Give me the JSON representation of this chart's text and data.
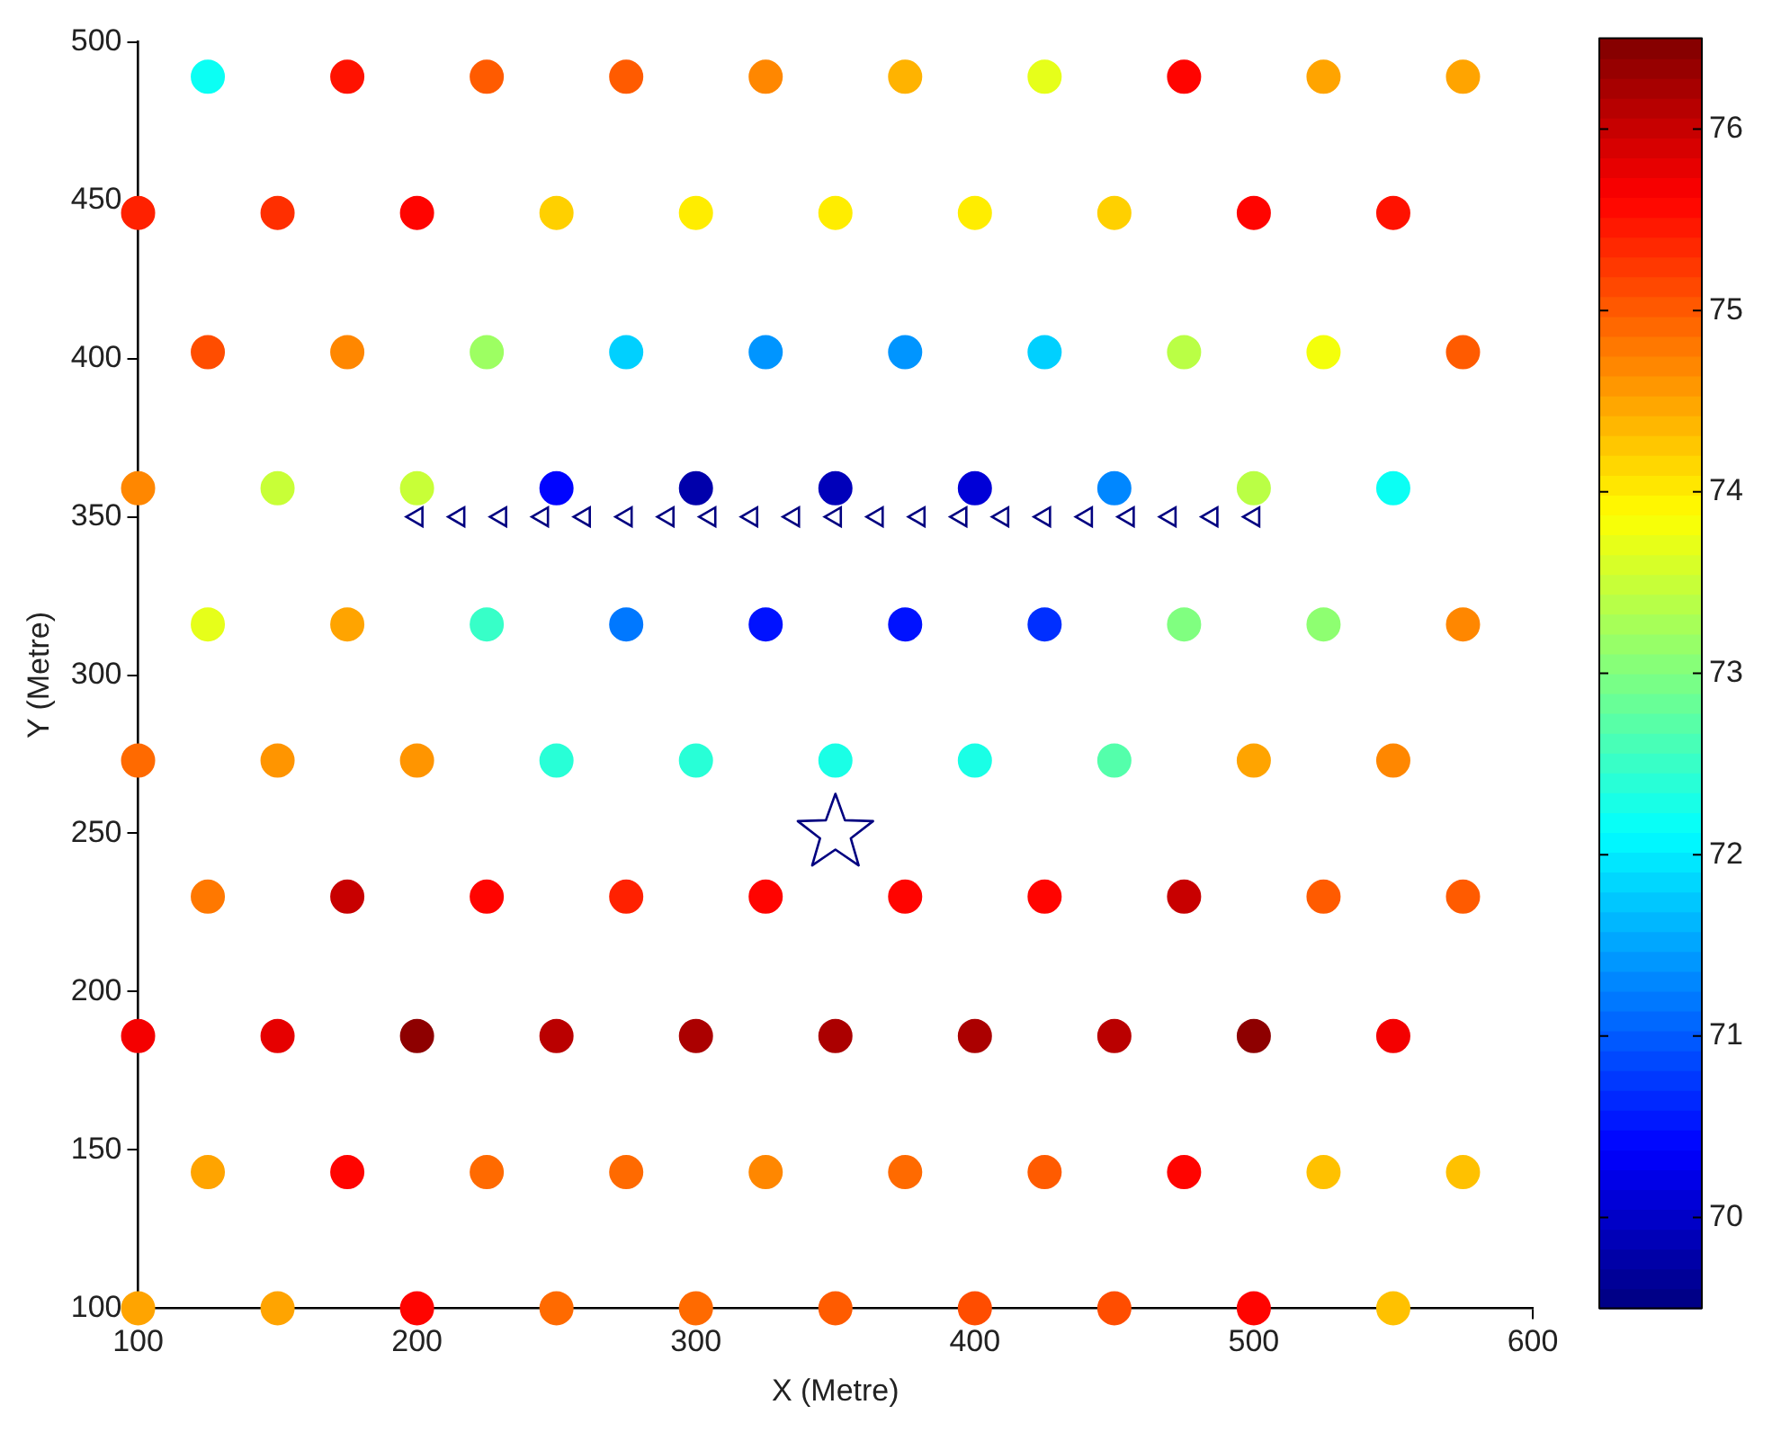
{
  "chart_data": {
    "type": "scatter",
    "xlabel": "X (Metre)",
    "ylabel": "Y (Metre)",
    "xlim": [
      100,
      600
    ],
    "ylim": [
      100,
      500
    ],
    "xticks": [
      100,
      200,
      300,
      400,
      500,
      600
    ],
    "yticks": [
      100,
      150,
      200,
      250,
      300,
      350,
      400,
      450,
      500
    ],
    "grid": false,
    "legend": false,
    "clim": [
      69.5,
      76.5
    ],
    "cticks": [
      70,
      71,
      72,
      73,
      74,
      75,
      76
    ],
    "series": [
      {
        "type": "scatter",
        "marker": "circle",
        "x": [
          100,
          150,
          200,
          250,
          300,
          350,
          400,
          450,
          500,
          550,
          125,
          175,
          225,
          275,
          325,
          375,
          425,
          475,
          525,
          575,
          100,
          150,
          200,
          250,
          300,
          350,
          400,
          450,
          500,
          550,
          125,
          175,
          225,
          275,
          325,
          375,
          425,
          475,
          525,
          575,
          100,
          150,
          200,
          250,
          300,
          350,
          400,
          450,
          500,
          550,
          125,
          175,
          225,
          275,
          325,
          375,
          425,
          475,
          525,
          575,
          100,
          150,
          200,
          250,
          300,
          350,
          400,
          450,
          500,
          550,
          125,
          175,
          225,
          275,
          325,
          375,
          425,
          475,
          525,
          575,
          100,
          150,
          200,
          250,
          300,
          350,
          400,
          450,
          500,
          550,
          125,
          175,
          225,
          275,
          325,
          375,
          425,
          475,
          525,
          575
        ],
        "values": [
          100,
          100,
          100,
          100,
          100,
          100,
          100,
          100,
          100,
          100,
          143,
          143,
          143,
          143,
          143,
          143,
          143,
          143,
          143,
          143,
          186,
          186,
          186,
          186,
          186,
          186,
          186,
          186,
          186,
          186,
          230,
          230,
          230,
          230,
          230,
          230,
          230,
          230,
          230,
          230,
          273,
          273,
          273,
          273,
          273,
          273,
          273,
          273,
          273,
          273,
          316,
          316,
          316,
          316,
          316,
          316,
          316,
          316,
          316,
          316,
          359,
          359,
          359,
          359,
          359,
          359,
          359,
          359,
          359,
          359,
          402,
          402,
          402,
          402,
          402,
          402,
          402,
          402,
          402,
          402,
          446,
          446,
          446,
          446,
          446,
          446,
          446,
          446,
          446,
          446,
          489,
          489,
          489,
          489,
          489,
          489,
          489,
          489,
          489,
          489
        ],
        "colors": [
          "#ffa400",
          "#ffa400",
          "#ff0400",
          "#ff6a00",
          "#ff6a00",
          "#ff5b00",
          "#ff4d00",
          "#ff4d00",
          "#ff0400",
          "#ffc100",
          "#ffa400",
          "#ff0400",
          "#ff6a00",
          "#ff6a00",
          "#ff8700",
          "#ff6a00",
          "#ff5b00",
          "#ff0400",
          "#ffc100",
          "#ffc100",
          "#f40000",
          "#e60000",
          "#8e0000",
          "#ba0000",
          "#ab0000",
          "#ab0000",
          "#ab0000",
          "#ba0000",
          "#8e0000",
          "#f40000",
          "#ff7800",
          "#c80000",
          "#ff0400",
          "#ff2100",
          "#ff0400",
          "#ff0400",
          "#ff0400",
          "#c80000",
          "#ff5b00",
          "#ff5b00",
          "#ff6a00",
          "#ff9500",
          "#ff9500",
          "#28ffd7",
          "#28ffd7",
          "#1affe6",
          "#1affe6",
          "#54ffab",
          "#ffa400",
          "#ff8700",
          "#e6ff1a",
          "#ffa400",
          "#37ffc8",
          "#0078ff",
          "#0012ff",
          "#0012ff",
          "#002fff",
          "#80ff80",
          "#8eff71",
          "#ff8700",
          "#ff8700",
          "#c8ff37",
          "#c8ff37",
          "#0004ff",
          "#0000ab",
          "#0000ba",
          "#0000d7",
          "#0087ff",
          "#baff45",
          "#0bfff4",
          "#ff4d00",
          "#ff8700",
          "#9dff62",
          "#00d0ff",
          "#0095ff",
          "#0095ff",
          "#00d0ff",
          "#baff45",
          "#f4ff0b",
          "#ff5b00",
          "#ff2100",
          "#ff2f00",
          "#ff0400",
          "#ffd000",
          "#ffed00",
          "#ffed00",
          "#ffed00",
          "#ffd000",
          "#ff0400",
          "#ff1200",
          "#0bfff4",
          "#ff1200",
          "#ff5b00",
          "#ff5b00",
          "#ff8700",
          "#ffb300",
          "#e6ff1a",
          "#ff0400",
          "#ffa400",
          "#ffa400"
        ],
        "cvalues": [
          74.5,
          74.5,
          75.6,
          74.9,
          74.9,
          75.0,
          75.1,
          75.1,
          75.6,
          74.3,
          74.5,
          75.6,
          74.9,
          74.9,
          74.7,
          74.9,
          75.0,
          75.6,
          74.3,
          74.3,
          75.7,
          75.8,
          76.4,
          76.1,
          76.2,
          76.2,
          76.2,
          76.1,
          76.4,
          75.7,
          74.8,
          76.0,
          75.6,
          75.4,
          75.6,
          75.6,
          75.6,
          76.0,
          75.0,
          75.0,
          74.9,
          74.6,
          74.6,
          72.4,
          72.4,
          72.3,
          72.3,
          72.7,
          74.5,
          74.7,
          73.7,
          74.5,
          72.5,
          71.2,
          70.5,
          70.5,
          70.7,
          73.0,
          73.1,
          74.7,
          74.7,
          73.5,
          73.5,
          70.4,
          69.8,
          69.9,
          70.1,
          71.3,
          73.4,
          72.2,
          75.1,
          74.7,
          73.2,
          71.8,
          71.4,
          71.4,
          71.8,
          73.4,
          73.8,
          75.0,
          75.4,
          75.3,
          75.6,
          74.2,
          74.0,
          74.0,
          74.0,
          74.2,
          75.6,
          75.5,
          72.2,
          75.5,
          75.0,
          75.0,
          74.7,
          74.4,
          73.7,
          75.6,
          74.5,
          74.5
        ]
      },
      {
        "type": "scatter",
        "marker": "triangle",
        "color": "#000080",
        "x": [
          200,
          215,
          230,
          245,
          260,
          275,
          290,
          305,
          320,
          335,
          350,
          365,
          380,
          395,
          410,
          425,
          440,
          455,
          470,
          485,
          500
        ],
        "values": [
          350,
          350,
          350,
          350,
          350,
          350,
          350,
          350,
          350,
          350,
          350,
          350,
          350,
          350,
          350,
          350,
          350,
          350,
          350,
          350,
          350
        ]
      },
      {
        "type": "scatter",
        "marker": "star",
        "color": "#000080",
        "x": [
          350
        ],
        "values": [
          250
        ]
      }
    ]
  }
}
